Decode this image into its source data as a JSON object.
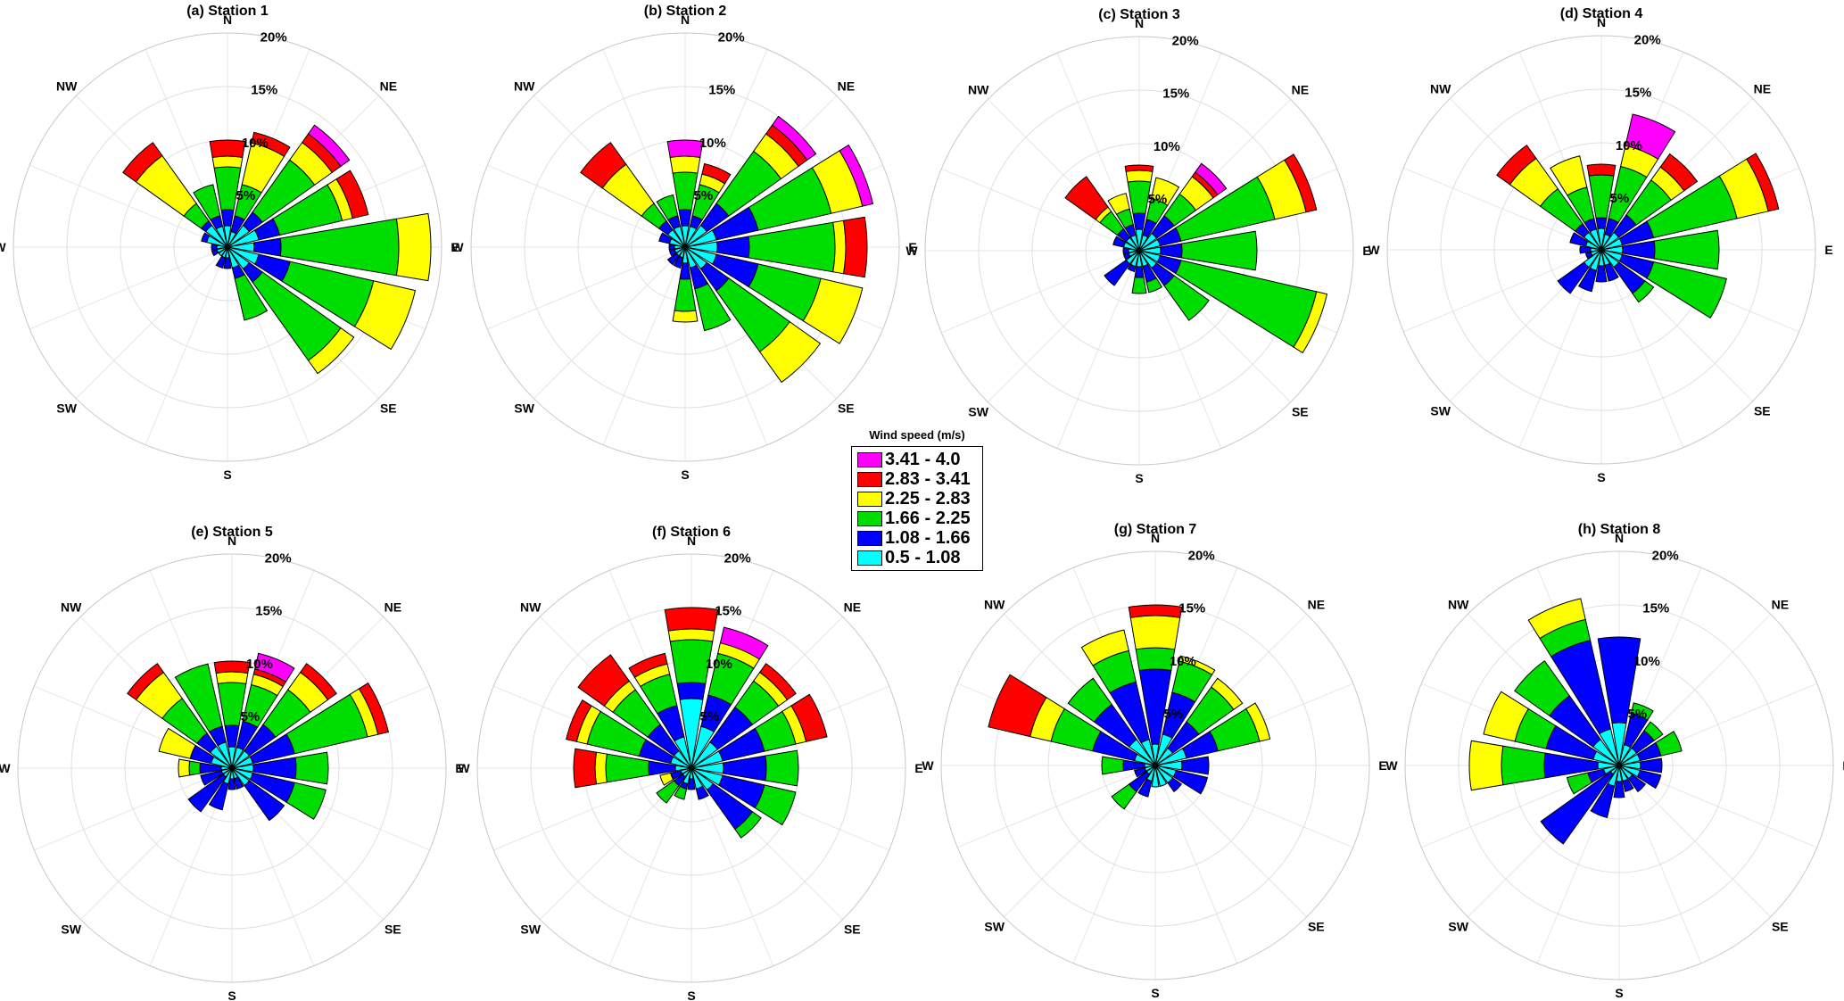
{
  "chart_data": {
    "type": "wind_rose",
    "directions": [
      "N",
      "NNE",
      "NE",
      "ENE",
      "E",
      "ESE",
      "SE",
      "SSE",
      "S",
      "SSW",
      "SW",
      "WSW",
      "W",
      "WNW",
      "NW",
      "NNW"
    ],
    "compass_labels": [
      "N",
      "NE",
      "E",
      "SE",
      "S",
      "SW",
      "W",
      "NW"
    ],
    "ring_labels": [
      "5%",
      "10%",
      "15%",
      "20%"
    ],
    "rmax": 20,
    "legend": {
      "title": "Wind speed (m/s)",
      "bins": [
        {
          "label": "3.41 - 4.0",
          "color": "#ff00ff"
        },
        {
          "label": "2.83 - 3.41",
          "color": "#ff0000"
        },
        {
          "label": "2.25 - 2.83",
          "color": "#ffff00"
        },
        {
          "label": "1.66 - 2.25",
          "color": "#00dd00"
        },
        {
          "label": "1.08 - 1.66",
          "color": "#0000ff"
        },
        {
          "label": "0.5 - 1.08",
          "color": "#00ffff"
        }
      ]
    },
    "bin_order_inner_to_outer": [
      "0.5 - 1.08",
      "1.08 - 1.66",
      "1.66 - 2.25",
      "2.25 - 2.83",
      "2.83 - 3.41",
      "3.41 - 4.0"
    ],
    "stations": [
      {
        "title": "(a) Station 1",
        "cumulative_percent": [
          [
            2,
            3.5,
            7.5,
            8.5,
            10,
            10
          ],
          [
            1.5,
            3,
            6,
            10,
            11,
            11
          ],
          [
            2.5,
            4,
            10,
            12,
            13,
            14
          ],
          [
            3,
            5,
            11,
            12,
            13.5,
            13.5
          ],
          [
            2.5,
            5,
            16,
            19,
            19,
            19
          ],
          [
            3,
            6,
            14,
            18,
            18,
            18
          ],
          [
            2.5,
            4,
            13,
            14.5,
            14.5,
            14.5
          ],
          [
            2,
            3,
            7,
            7,
            7,
            7
          ],
          [
            1,
            2,
            2,
            2,
            2,
            2
          ],
          [
            1,
            2,
            2,
            2,
            2,
            2
          ],
          [
            1,
            1,
            1,
            1,
            1,
            1
          ],
          [
            1,
            1.5,
            1.5,
            1.5,
            1.5,
            1.5
          ],
          [
            1,
            1.5,
            1.5,
            1.5,
            1.5,
            1.5
          ],
          [
            2,
            2.5,
            2.5,
            2.5,
            2.5,
            2.5
          ],
          [
            2.5,
            3,
            5,
            10.5,
            12,
            12
          ],
          [
            2,
            3,
            6,
            6,
            6,
            6
          ]
        ]
      },
      {
        "title": "(b) Station 2",
        "cumulative_percent": [
          [
            2,
            3.5,
            7,
            8.5,
            8.5,
            10
          ],
          [
            2,
            3,
            6,
            7,
            8,
            8
          ],
          [
            2.5,
            5,
            11,
            13,
            14,
            15
          ],
          [
            3,
            7,
            14,
            17,
            17,
            18
          ],
          [
            3,
            6,
            14,
            15,
            17,
            17
          ],
          [
            3,
            7,
            13,
            17,
            17,
            17
          ],
          [
            2.5,
            5,
            12,
            15.5,
            15.5,
            15.5
          ],
          [
            2,
            4,
            8,
            8,
            8,
            8
          ],
          [
            1.5,
            3,
            6,
            7,
            7,
            7
          ],
          [
            1,
            2,
            2,
            2,
            2,
            2
          ],
          [
            1,
            2,
            2,
            2,
            2,
            2
          ],
          [
            1,
            1.5,
            1.5,
            1.5,
            1.5,
            1.5
          ],
          [
            1,
            1.5,
            1.5,
            1.5,
            1.5,
            1.5
          ],
          [
            1.5,
            2.5,
            2.5,
            2.5,
            2.5,
            2.5
          ],
          [
            2,
            3,
            5,
            9.5,
            12,
            12
          ],
          [
            2,
            3,
            5,
            5,
            5,
            5
          ]
        ]
      },
      {
        "title": "(c) Station 3",
        "cumulative_percent": [
          [
            2,
            3.5,
            6.5,
            7.5,
            8,
            8
          ],
          [
            1.5,
            3,
            5,
            7,
            7,
            7
          ],
          [
            2,
            4,
            6.5,
            8.5,
            9,
            10
          ],
          [
            2,
            4,
            13,
            16,
            17,
            17
          ],
          [
            2,
            4,
            11,
            11,
            11,
            11
          ],
          [
            2,
            4,
            17,
            18,
            18,
            18
          ],
          [
            2,
            4,
            8,
            8,
            8,
            8
          ],
          [
            1.5,
            3,
            4,
            4,
            4,
            4
          ],
          [
            1.5,
            2.5,
            4,
            4,
            4,
            4
          ],
          [
            1.5,
            2,
            2,
            2,
            2,
            2
          ],
          [
            1.5,
            4,
            4,
            4,
            4,
            4
          ],
          [
            1,
            1.5,
            1.5,
            1.5,
            1.5,
            1.5
          ],
          [
            1,
            1.5,
            1.5,
            1.5,
            1.5,
            1.5
          ],
          [
            1.5,
            2.5,
            2.5,
            2.5,
            2.5,
            2.5
          ],
          [
            1.5,
            2.5,
            4.5,
            5,
            8.5,
            8.5
          ],
          [
            1.5,
            2.5,
            4,
            5.5,
            5.5,
            5.5
          ]
        ]
      },
      {
        "title": "(d) Station 4",
        "cumulative_percent": [
          [
            2,
            3,
            7,
            7,
            8,
            8
          ],
          [
            1.5,
            3,
            8,
            10,
            10,
            13
          ],
          [
            2,
            4,
            8,
            9.5,
            11,
            11
          ],
          [
            2,
            5,
            13,
            16,
            17,
            17
          ],
          [
            2,
            5,
            11,
            11,
            11,
            11
          ],
          [
            2,
            5,
            12,
            12,
            12,
            12
          ],
          [
            2,
            5,
            6,
            6,
            6,
            6
          ],
          [
            1.5,
            3,
            3,
            3,
            3,
            3
          ],
          [
            1.5,
            3,
            3,
            3,
            3,
            3
          ],
          [
            2,
            4,
            4,
            4,
            4,
            4
          ],
          [
            2,
            5,
            5,
            5,
            5,
            5
          ],
          [
            1,
            1.5,
            1.5,
            1.5,
            1.5,
            1.5
          ],
          [
            1,
            2,
            2,
            2,
            2,
            2
          ],
          [
            1.5,
            3,
            3,
            3,
            3,
            3
          ],
          [
            2,
            3,
            7,
            10.5,
            12,
            12
          ],
          [
            2,
            3,
            6,
            9,
            9,
            9
          ]
        ]
      },
      {
        "title": "(e) Station 5",
        "cumulative_percent": [
          [
            2,
            4,
            8,
            9,
            10,
            10
          ],
          [
            2,
            4.5,
            8,
            9,
            9.5,
            11
          ],
          [
            2,
            5,
            9,
            11,
            12,
            12
          ],
          [
            2,
            6,
            13,
            14,
            15,
            15
          ],
          [
            2,
            6,
            9,
            9,
            9,
            9
          ],
          [
            2,
            6,
            9,
            9,
            9,
            9
          ],
          [
            2,
            6,
            6,
            6,
            6,
            6
          ],
          [
            1,
            2,
            2,
            2,
            2,
            2
          ],
          [
            1,
            2,
            2,
            2,
            2,
            2
          ],
          [
            1.5,
            4,
            4,
            4,
            4,
            4
          ],
          [
            1,
            5,
            5,
            5,
            5,
            5
          ],
          [
            1,
            3,
            3,
            3,
            3,
            3
          ],
          [
            1,
            3,
            4,
            5,
            5,
            5
          ],
          [
            2,
            4,
            4,
            7,
            7,
            7
          ],
          [
            2.5,
            4,
            8,
            11,
            12,
            12
          ],
          [
            2.5,
            4,
            10,
            10,
            10,
            10
          ]
        ]
      },
      {
        "title": "(f) Station 6",
        "cumulative_percent": [
          [
            6.5,
            8,
            12,
            13,
            15,
            15
          ],
          [
            4,
            7,
            11,
            12,
            12,
            13.5
          ],
          [
            3,
            7,
            10,
            11,
            12,
            12
          ],
          [
            3,
            7,
            10,
            11,
            13,
            13
          ],
          [
            3,
            7,
            10,
            10,
            10,
            10
          ],
          [
            3,
            7,
            10,
            10,
            10,
            10
          ],
          [
            2.5,
            7,
            8,
            8,
            8,
            8
          ],
          [
            2,
            3,
            3,
            3,
            3,
            3
          ],
          [
            1,
            2,
            2,
            2,
            2,
            2
          ],
          [
            1.5,
            2,
            3,
            3,
            3,
            3
          ],
          [
            1,
            2,
            4,
            4,
            4,
            4
          ],
          [
            1,
            2,
            2,
            3,
            3,
            3
          ],
          [
            1.5,
            4,
            8,
            9,
            11,
            11
          ],
          [
            2,
            5,
            10,
            11,
            12,
            12
          ],
          [
            2,
            5,
            9,
            10,
            13,
            13
          ],
          [
            3,
            6,
            9,
            10,
            11,
            11
          ]
        ]
      },
      {
        "title": "(g) Station 7",
        "cumulative_percent": [
          [
            2,
            9,
            11,
            14,
            15,
            15
          ],
          [
            3,
            7,
            10,
            10.5,
            10.5,
            10.5
          ],
          [
            2,
            5,
            9,
            10,
            10,
            10
          ],
          [
            3,
            6,
            10,
            11,
            11,
            11
          ],
          [
            2.5,
            5,
            5,
            5,
            5,
            5
          ],
          [
            2,
            5,
            5,
            5,
            5,
            5
          ],
          [
            2,
            3,
            3,
            3,
            3,
            3
          ],
          [
            2,
            2,
            2,
            2,
            2,
            2
          ],
          [
            2,
            2,
            2,
            2,
            2,
            2
          ],
          [
            1.5,
            3,
            3,
            3,
            3,
            3
          ],
          [
            1,
            3,
            5,
            5,
            5,
            5
          ],
          [
            1,
            2,
            2,
            2,
            2,
            2
          ],
          [
            1,
            3,
            5,
            5,
            5,
            5
          ],
          [
            2,
            6,
            10,
            12,
            16,
            16
          ],
          [
            3,
            7,
            10,
            10,
            10,
            10
          ],
          [
            2.5,
            8,
            11,
            13,
            13,
            13
          ]
        ]
      },
      {
        "title": "(h) Station 8",
        "cumulative_percent": [
          [
            4,
            12,
            12,
            12,
            12,
            12
          ],
          [
            2,
            5,
            6,
            6,
            6,
            6
          ],
          [
            2,
            4,
            5,
            5,
            5,
            5
          ],
          [
            2,
            4,
            6,
            6,
            6,
            6
          ],
          [
            2,
            4,
            4,
            4,
            4,
            4
          ],
          [
            2,
            4,
            4,
            4,
            4,
            4
          ],
          [
            1.5,
            3,
            3,
            3,
            3,
            3
          ],
          [
            1.5,
            2.5,
            2.5,
            2.5,
            2.5,
            2.5
          ],
          [
            1.5,
            3,
            3,
            3,
            3,
            3
          ],
          [
            2,
            5,
            5,
            5,
            5,
            5
          ],
          [
            1,
            9,
            9,
            9,
            9,
            9
          ],
          [
            1.5,
            3,
            5,
            5,
            5,
            5
          ],
          [
            2,
            7,
            11,
            14,
            14,
            14
          ],
          [
            2.5,
            7,
            10,
            13,
            13,
            13
          ],
          [
            3,
            8,
            12,
            12,
            12,
            12
          ],
          [
            3.5,
            12,
            14,
            16,
            16,
            16
          ]
        ]
      }
    ]
  }
}
